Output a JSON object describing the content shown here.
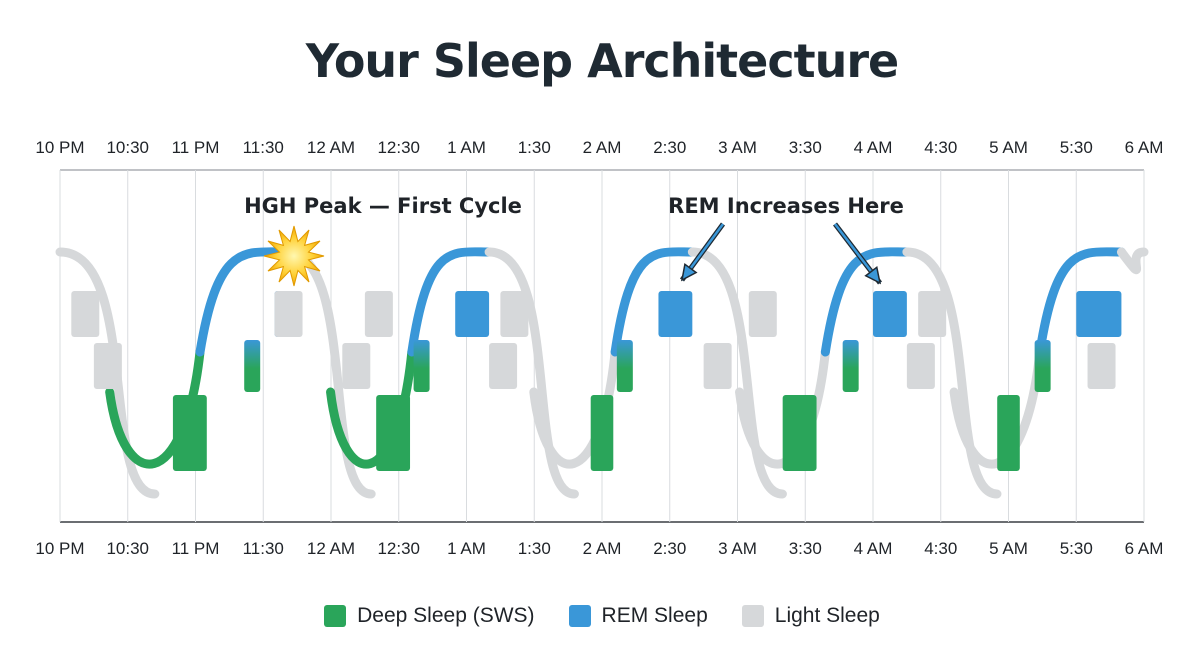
{
  "title": "Your Sleep Architecture",
  "colors": {
    "deep": "#2aa55a",
    "rem": "#3a97d8",
    "light": "#d6d8da"
  },
  "chart_data": {
    "type": "area",
    "x_ticks": [
      "10 PM",
      "10:30",
      "11 PM",
      "11:30",
      "12 AM",
      "12:30",
      "1 AM",
      "1:30",
      "2 AM",
      "2:30",
      "3 AM",
      "3:30",
      "4 AM",
      "4:30",
      "5 AM",
      "5:30",
      "6 AM"
    ],
    "y_levels": [
      "REM Sleep",
      "Light Sleep",
      "Light Sleep",
      "Deep Sleep (SWS)"
    ],
    "grid": true,
    "legend_position": "bottom",
    "series": [
      {
        "name": "Deep Sleep (SWS)",
        "color": "#2aa55a",
        "blocks": [
          {
            "x_start": "10:50 PM",
            "x_end": "11:05 PM"
          },
          {
            "x_start": "12:20 AM",
            "x_end": "12:35 AM"
          },
          {
            "x_start": "1:55 AM",
            "x_end": "2:05 AM"
          },
          {
            "x_start": "3:20 AM",
            "x_end": "3:35 AM"
          },
          {
            "x_start": "4:55 AM",
            "x_end": "5:05 AM"
          }
        ]
      },
      {
        "name": "REM Sleep",
        "color": "#3a97d8",
        "blocks": [
          {
            "x_start": "11:35 PM",
            "x_end": "11:40 PM"
          },
          {
            "x_start": "12:55 AM",
            "x_end": "1:10 AM"
          },
          {
            "x_start": "2:25 AM",
            "x_end": "2:40 AM"
          },
          {
            "x_start": "4:00 AM",
            "x_end": "4:15 AM"
          },
          {
            "x_start": "5:30 AM",
            "x_end": "5:50 AM"
          }
        ]
      },
      {
        "name": "Light Sleep",
        "color": "#d6d8da"
      }
    ],
    "annotations": [
      {
        "text": "HGH Peak — First Cycle",
        "x": "11:35 PM"
      },
      {
        "text": "REM Increases Here",
        "x": "3:10 AM"
      }
    ]
  },
  "legend": [
    {
      "label": "Deep Sleep (SWS)",
      "color": "#2aa55a"
    },
    {
      "label": "REM Sleep",
      "color": "#3a97d8"
    },
    {
      "label": "Light Sleep",
      "color": "#d6d8da"
    }
  ]
}
